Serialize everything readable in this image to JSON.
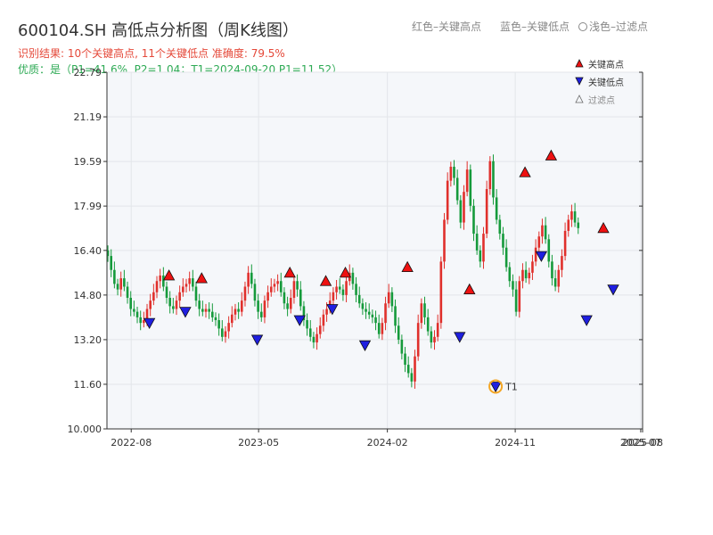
{
  "header": {
    "title": "600104.SH 高低点分析图（周K线图）",
    "result_line": "识别结果: 10个关键高点, 11个关键低点  准确度: 79.5%",
    "quality_line": "优质：是（P1=41.6%, P2=1.04；T1=2024-09-20 P1=11.52）"
  },
  "top_legend": {
    "red_label": "红色–关键高点",
    "blue_label": "蓝色–关键低点",
    "filtered_label": "浅色–过滤点"
  },
  "legend": {
    "high_label": "关键高点",
    "low_label": "关键低点",
    "filtered_label": "过滤点"
  },
  "colors": {
    "up": "#e0302c",
    "down": "#159a3b",
    "high_marker": "#ee1111",
    "low_marker": "#1f1fe0",
    "t1_ring": "#f5a623",
    "plot_bg": "#f5f7fa",
    "grid": "#e3e6ea"
  },
  "chart_data": {
    "type": "candlestick",
    "title": "600104.SH 高低点分析图（周K线图）",
    "xlabel": "",
    "ylabel": "",
    "ylim": [
      10.0,
      22.79
    ],
    "y_ticks": [
      10.0,
      11.6,
      13.2,
      14.8,
      16.4,
      17.99,
      19.59,
      21.19,
      22.79
    ],
    "y_tick_labels": [
      "10.000",
      "11.60",
      "13.20",
      "14.80",
      "16.40",
      "17.99",
      "19.59",
      "21.19",
      "22.79"
    ],
    "x_range": [
      "2022-06-10",
      "2025-08-01"
    ],
    "x_ticks": [
      {
        "date": "2022-08-01",
        "label": "2022-08"
      },
      {
        "date": "2023-05-01",
        "label": "2023-05"
      },
      {
        "date": "2024-02-01",
        "label": "2024-02"
      },
      {
        "date": "2024-11-01",
        "label": "2024-11"
      },
      {
        "date": "2025-07-28",
        "label": "2025-07"
      },
      {
        "date": "2025-08-01",
        "label": "2025-08"
      }
    ],
    "grid": true,
    "legend_position": "top-right",
    "closes": [
      16.2,
      15.7,
      15.2,
      15.0,
      15.4,
      15.1,
      14.7,
      14.3,
      14.2,
      14.0,
      13.8,
      13.9,
      14.3,
      14.6,
      14.9,
      15.3,
      15.5,
      15.1,
      14.7,
      14.4,
      14.3,
      14.6,
      14.9,
      15.1,
      15.2,
      15.4,
      15.1,
      14.6,
      14.3,
      14.2,
      14.3,
      14.2,
      14.0,
      13.9,
      13.6,
      13.3,
      13.5,
      13.8,
      14.1,
      14.3,
      14.2,
      14.6,
      15.1,
      15.6,
      15.2,
      14.6,
      14.2,
      14.0,
      14.6,
      14.9,
      15.1,
      15.2,
      15.3,
      14.9,
      14.5,
      14.3,
      14.7,
      15.3,
      15.0,
      14.4,
      13.9,
      13.6,
      13.3,
      13.1,
      13.4,
      13.7,
      14.1,
      14.3,
      14.6,
      14.9,
      15.1,
      15.0,
      14.8,
      15.3,
      15.6,
      15.2,
      14.8,
      14.5,
      14.3,
      14.2,
      14.1,
      14.0,
      13.8,
      13.4,
      13.8,
      14.5,
      14.9,
      14.4,
      13.7,
      13.2,
      12.7,
      12.3,
      12.0,
      11.7,
      12.6,
      13.8,
      14.5,
      14.0,
      13.5,
      13.1,
      13.3,
      13.8,
      16.0,
      17.5,
      18.9,
      19.4,
      19.0,
      18.2,
      17.4,
      18.5,
      19.3,
      18.0,
      17.0,
      16.4,
      16.0,
      17.0,
      18.6,
      19.6,
      18.3,
      17.5,
      17.0,
      16.5,
      15.8,
      15.3,
      15.0,
      14.2,
      15.3,
      15.7,
      15.4,
      15.6,
      16.0,
      16.5,
      16.9,
      17.3,
      16.8,
      16.0,
      15.4,
      15.1,
      15.7,
      16.2,
      17.1,
      17.5,
      17.8,
      17.4,
      17.2
    ],
    "key_highs": [
      {
        "date": "2022-10-21",
        "value": 15.5
      },
      {
        "date": "2022-12-30",
        "value": 15.4
      },
      {
        "date": "2023-07-07",
        "value": 15.6
      },
      {
        "date": "2023-09-22",
        "value": 15.3
      },
      {
        "date": "2023-11-03",
        "value": 15.6
      },
      {
        "date": "2024-03-15",
        "value": 15.8
      },
      {
        "date": "2024-07-26",
        "value": 15.0
      },
      {
        "date": "2024-11-22",
        "value": 19.2
      },
      {
        "date": "2025-01-17",
        "value": 19.8
      },
      {
        "date": "2025-05-09",
        "value": 17.2
      }
    ],
    "key_lows": [
      {
        "date": "2022-09-09",
        "value": 13.8
      },
      {
        "date": "2022-11-25",
        "value": 14.2
      },
      {
        "date": "2023-04-28",
        "value": 13.2
      },
      {
        "date": "2023-07-28",
        "value": 13.9
      },
      {
        "date": "2023-10-06",
        "value": 14.3
      },
      {
        "date": "2023-12-15",
        "value": 13.0
      },
      {
        "date": "2024-07-05",
        "value": 13.3
      },
      {
        "date": "2024-09-20",
        "value": 11.52
      },
      {
        "date": "2024-12-27",
        "value": 16.2
      },
      {
        "date": "2025-04-03",
        "value": 13.9
      },
      {
        "date": "2025-05-30",
        "value": 15.0
      }
    ],
    "t1": {
      "date": "2024-09-20",
      "value": 11.52,
      "label": "T1"
    }
  }
}
